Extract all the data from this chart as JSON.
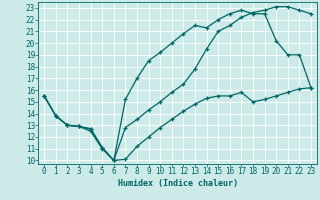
{
  "xlabel": "Humidex (Indice chaleur)",
  "ylabel": "",
  "bg_color": "#cceae8",
  "grid_color": "#b0d8d5",
  "line_color": "#006666",
  "xlim": [
    -0.5,
    23.5
  ],
  "ylim": [
    9.7,
    23.5
  ],
  "xticks": [
    0,
    1,
    2,
    3,
    4,
    5,
    6,
    7,
    8,
    9,
    10,
    11,
    12,
    13,
    14,
    15,
    16,
    17,
    18,
    19,
    20,
    21,
    22,
    23
  ],
  "yticks": [
    10,
    11,
    12,
    13,
    14,
    15,
    16,
    17,
    18,
    19,
    20,
    21,
    22,
    23
  ],
  "line1_x": [
    0,
    1,
    2,
    3,
    4,
    5,
    6,
    7,
    8,
    9,
    10,
    11,
    12,
    13,
    14,
    15,
    16,
    17,
    18,
    19,
    20,
    21,
    22,
    23
  ],
  "line1_y": [
    15.5,
    13.8,
    13.0,
    12.9,
    12.7,
    11.1,
    10.0,
    12.8,
    13.5,
    14.3,
    15.0,
    15.8,
    16.5,
    17.8,
    19.5,
    21.0,
    21.5,
    22.2,
    22.6,
    22.8,
    23.1,
    23.1,
    22.8,
    22.5
  ],
  "line2_x": [
    0,
    1,
    2,
    3,
    4,
    5,
    6,
    7,
    8,
    9,
    10,
    11,
    12,
    13,
    14,
    15,
    16,
    17,
    18,
    19,
    20,
    21,
    22,
    23
  ],
  "line2_y": [
    15.5,
    13.8,
    13.0,
    12.9,
    12.5,
    11.0,
    10.0,
    15.2,
    17.0,
    18.5,
    19.2,
    20.0,
    20.8,
    21.5,
    21.3,
    22.0,
    22.5,
    22.8,
    22.5,
    22.5,
    20.2,
    19.0,
    19.0,
    16.2
  ],
  "line3_x": [
    0,
    1,
    2,
    3,
    4,
    5,
    6,
    7,
    8,
    9,
    10,
    11,
    12,
    13,
    14,
    15,
    16,
    17,
    18,
    19,
    20,
    21,
    22,
    23
  ],
  "line3_y": [
    15.5,
    13.8,
    13.0,
    12.9,
    12.7,
    11.1,
    10.0,
    10.1,
    11.2,
    12.0,
    12.8,
    13.5,
    14.2,
    14.8,
    15.3,
    15.5,
    15.5,
    15.8,
    15.0,
    15.2,
    15.5,
    15.8,
    16.1,
    16.2
  ],
  "xlabel_fontsize": 6,
  "tick_fontsize": 5.5
}
